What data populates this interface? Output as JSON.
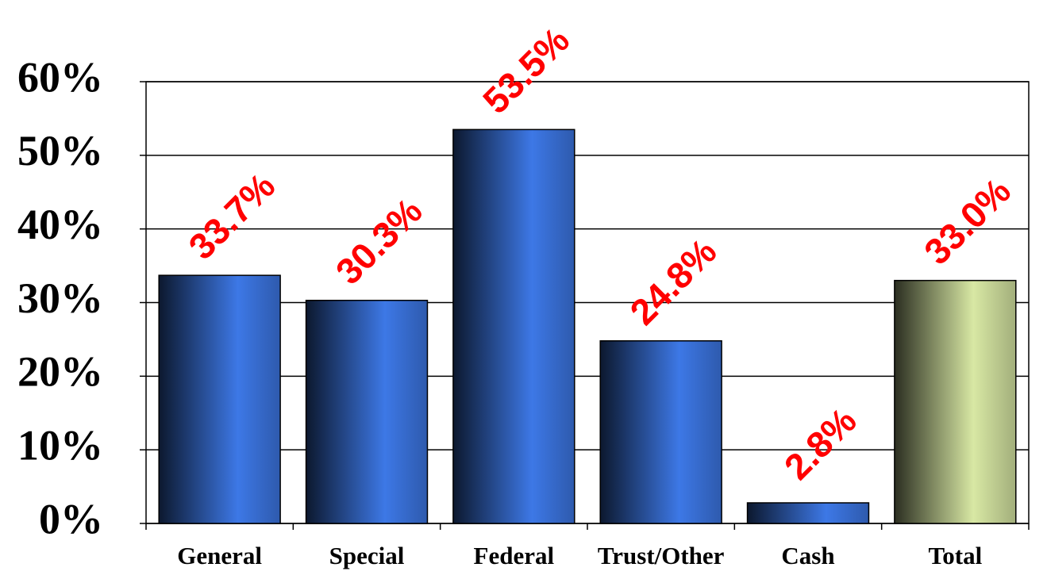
{
  "chart_data": {
    "type": "bar",
    "categories": [
      "General",
      "Special",
      "Federal",
      "Trust/Other",
      "Cash",
      "Total"
    ],
    "values": [
      33.7,
      30.3,
      53.5,
      24.8,
      2.8,
      33.0
    ],
    "value_labels": [
      "33.7%",
      "30.3%",
      "53.5%",
      "24.8%",
      "2.8%",
      "33.0%"
    ],
    "colors": [
      "#3d78e6",
      "#3d78e6",
      "#3d78e6",
      "#3d78e6",
      "#3d78e6",
      "#d8e8a4"
    ],
    "ylim": [
      0,
      60
    ],
    "yticks": [
      {
        "value": 0,
        "label": "0%"
      },
      {
        "value": 10,
        "label": "10%"
      },
      {
        "value": 20,
        "label": "20%"
      },
      {
        "value": 30,
        "label": "30%"
      },
      {
        "value": 40,
        "label": "40%"
      },
      {
        "value": 50,
        "label": "50%"
      },
      {
        "value": 60,
        "label": "60%"
      }
    ],
    "grid": true
  }
}
